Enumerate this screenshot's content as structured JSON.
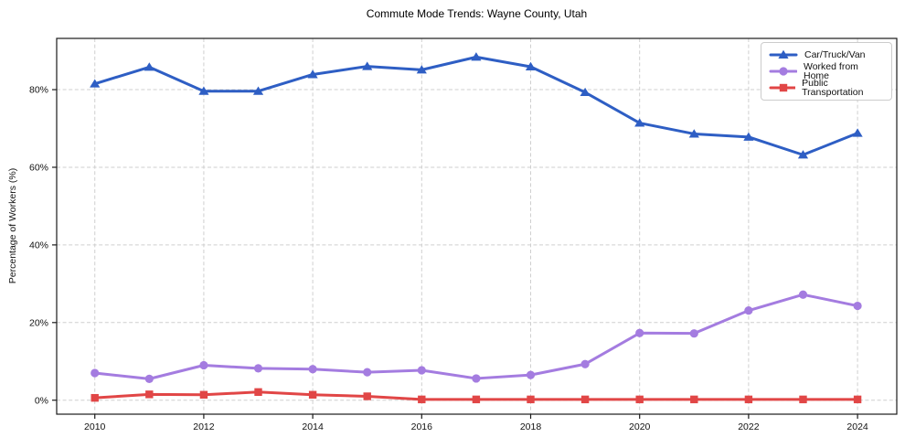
{
  "title": "Commute Mode Trends: Wayne County, Utah",
  "chart_data": {
    "type": "line",
    "title": "Commute Mode Trends: Wayne County, Utah",
    "xlabel": "",
    "ylabel": "Percentage of Workers (%)",
    "x": [
      2010,
      2011,
      2012,
      2013,
      2014,
      2015,
      2016,
      2017,
      2018,
      2019,
      2020,
      2021,
      2022,
      2023,
      2024
    ],
    "x_ticks": [
      2010,
      2012,
      2014,
      2016,
      2018,
      2020,
      2022,
      2024
    ],
    "x_tick_labels": [
      "2010",
      "2012",
      "2014",
      "2016",
      "2018",
      "2020",
      "2022",
      "2024"
    ],
    "y_ticks": [
      0,
      20,
      40,
      60,
      80
    ],
    "y_tick_labels": [
      "0%",
      "20%",
      "40%",
      "60%",
      "80%"
    ],
    "xlim": [
      2009.3,
      2024.72
    ],
    "ylim": [
      -3.6,
      93.2
    ],
    "grid": true,
    "grid_color": "#cfcfcf",
    "spine_color": "#1a1a1a",
    "background": "#ffffff",
    "legend_position": "upper right",
    "series": [
      {
        "name": "Car/Truck/Van",
        "color": "#2e5ec4",
        "marker": "triangle",
        "values": [
          81.5,
          85.8,
          79.6,
          79.6,
          83.9,
          86.0,
          85.1,
          88.4,
          85.9,
          79.3,
          71.4,
          68.6,
          67.8,
          63.2,
          68.8
        ]
      },
      {
        "name": "Worked from Home",
        "color": "#a47ce0",
        "marker": "circle",
        "values": [
          7.0,
          5.5,
          9.0,
          8.2,
          8.0,
          7.2,
          7.7,
          5.6,
          6.5,
          9.3,
          17.3,
          17.2,
          23.1,
          27.2,
          24.3
        ]
      },
      {
        "name": "Public Transportation",
        "color": "#e14646",
        "marker": "square",
        "values": [
          0.6,
          1.5,
          1.4,
          2.1,
          1.4,
          1.0,
          0.2,
          0.2,
          0.2,
          0.2,
          0.2,
          0.2,
          0.2,
          0.2,
          0.2
        ]
      }
    ]
  }
}
